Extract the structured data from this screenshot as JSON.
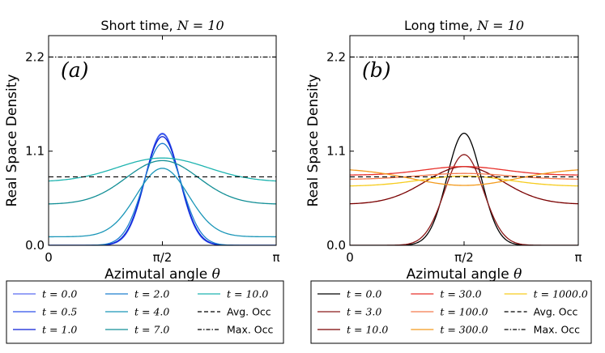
{
  "colors": {
    "avg_occ": "#000000",
    "max_occ": "#000000"
  },
  "chart_data": [
    {
      "type": "line",
      "panel_label": "(a)",
      "title": "Short time, N = 10",
      "title_parts": {
        "prefix": "Short time, ",
        "var": "N",
        "eq": " = 10"
      },
      "xlabel": "Azimutal angle θ",
      "xlabel_prefix": "Azimutal angle ",
      "xlabel_var": "θ",
      "ylabel": "Real Space Density",
      "xlim": [
        0,
        3.14159
      ],
      "ylim": [
        0,
        2.45
      ],
      "x_ticks": [
        {
          "value": 0,
          "label": "0"
        },
        {
          "value": 1.5708,
          "label": "π/2"
        },
        {
          "value": 3.14159,
          "label": "π"
        }
      ],
      "y_ticks": [
        {
          "value": 0,
          "label": "0.0"
        },
        {
          "value": 1.1,
          "label": "1.1"
        },
        {
          "value": 2.2,
          "label": "2.2"
        }
      ],
      "profile": "gaussian",
      "series": [
        {
          "name": "t = 0.0",
          "color": "#5a6cf2",
          "amplitude": 1.31,
          "sigma": 0.235,
          "offset": 0.0
        },
        {
          "name": "t = 0.5",
          "color": "#2f52ea",
          "amplitude": 1.3,
          "sigma": 0.237,
          "offset": 0.0
        },
        {
          "name": "t = 1.0",
          "color": "#0a1fd6",
          "amplitude": 1.27,
          "sigma": 0.243,
          "offset": 0.0
        },
        {
          "name": "t = 2.0",
          "color": "#1d7fcf",
          "amplitude": 1.19,
          "sigma": 0.262,
          "offset": 0.0
        },
        {
          "name": "t = 4.0",
          "color": "#1a96b8",
          "amplitude": 0.8,
          "sigma": 0.36,
          "offset": 0.1
        },
        {
          "name": "t = 7.0",
          "color": "#138f96",
          "amplitude": 0.51,
          "sigma": 0.5,
          "offset": 0.48
        },
        {
          "name": "t = 10.0",
          "color": "#1fb4b0",
          "amplitude": 0.28,
          "sigma": 0.62,
          "offset": 0.74
        }
      ],
      "avg_occ": 0.8,
      "max_occ": 2.2,
      "legend": {
        "entries": [
          {
            "label": "t = 0.0",
            "var": "t",
            "eq": " = 0.0",
            "style": "line",
            "color": "#5a6cf2"
          },
          {
            "label": "t = 0.5",
            "var": "t",
            "eq": " = 0.5",
            "style": "line",
            "color": "#2f52ea"
          },
          {
            "label": "t = 1.0",
            "var": "t",
            "eq": " = 1.0",
            "style": "line",
            "color": "#0a1fd6"
          },
          {
            "label": "t = 2.0",
            "var": "t",
            "eq": " = 2.0",
            "style": "line",
            "color": "#1d7fcf"
          },
          {
            "label": "t = 4.0",
            "var": "t",
            "eq": " = 4.0",
            "style": "line",
            "color": "#1a96b8"
          },
          {
            "label": "t = 7.0",
            "var": "t",
            "eq": " = 7.0",
            "style": "line",
            "color": "#138f96"
          },
          {
            "label": "t = 10.0",
            "var": "t",
            "eq": " = 10.0",
            "style": "line",
            "color": "#1fb4b0"
          },
          {
            "label": "Avg. Occ",
            "var": "",
            "eq": "Avg. Occ",
            "style": "dashed",
            "color": "#000000"
          },
          {
            "label": "Max. Occ",
            "var": "",
            "eq": "Max. Occ",
            "style": "dashdot",
            "color": "#000000"
          }
        ]
      }
    },
    {
      "type": "line",
      "panel_label": "(b)",
      "title": "Long time, N = 10",
      "title_parts": {
        "prefix": "Long time, ",
        "var": "N",
        "eq": " = 10"
      },
      "xlabel": "Azimutal angle θ",
      "xlabel_prefix": "Azimutal angle ",
      "xlabel_var": "θ",
      "ylabel": "Real Space Density",
      "xlim": [
        0,
        3.14159
      ],
      "ylim": [
        0,
        2.45
      ],
      "x_ticks": [
        {
          "value": 0,
          "label": "0"
        },
        {
          "value": 1.5708,
          "label": "π/2"
        },
        {
          "value": 3.14159,
          "label": "π"
        }
      ],
      "y_ticks": [
        {
          "value": 0,
          "label": "0.0"
        },
        {
          "value": 1.1,
          "label": "1.1"
        },
        {
          "value": 2.2,
          "label": "2.2"
        }
      ],
      "profile": "gaussian",
      "series": [
        {
          "name": "t = 0.0",
          "color": "#000000",
          "amplitude": 1.31,
          "sigma": 0.235,
          "offset": 0.0
        },
        {
          "name": "t = 3.0",
          "color": "#8b1a1a",
          "amplitude": 1.06,
          "sigma": 0.265,
          "offset": 0.0
        },
        {
          "name": "t = 10.0",
          "color": "#7a0000",
          "amplitude": 0.44,
          "sigma": 0.53,
          "offset": 0.48
        },
        {
          "name": "t = 30.0",
          "color": "#e8302a",
          "amplitude": 0.1,
          "sigma": 0.55,
          "offset": 0.82
        },
        {
          "name": "t = 100.0",
          "color": "#f47a4e",
          "amplitude": 0.07,
          "sigma": 0.62,
          "offset": 0.77
        },
        {
          "name": "t = 300.0",
          "color": "#f39a1c",
          "amplitude": -0.2,
          "sigma": 0.72,
          "offset": 0.9
        },
        {
          "name": "t = 1000.0",
          "color": "#f6cc1e",
          "amplitude": 0.12,
          "sigma": 0.6,
          "offset": 0.69
        }
      ],
      "avg_occ": 0.8,
      "max_occ": 2.2,
      "legend": {
        "entries": [
          {
            "label": "t = 0.0",
            "var": "t",
            "eq": " = 0.0",
            "style": "line",
            "color": "#000000"
          },
          {
            "label": "t = 3.0",
            "var": "t",
            "eq": " = 3.0",
            "style": "line",
            "color": "#8b1a1a"
          },
          {
            "label": "t = 10.0",
            "var": "t",
            "eq": " = 10.0",
            "style": "line",
            "color": "#7a0000"
          },
          {
            "label": "t = 30.0",
            "var": "t",
            "eq": " = 30.0",
            "style": "line",
            "color": "#e8302a"
          },
          {
            "label": "t = 100.0",
            "var": "t",
            "eq": " = 100.0",
            "style": "line",
            "color": "#f47a4e"
          },
          {
            "label": "t = 300.0",
            "var": "t",
            "eq": " = 300.0",
            "style": "line",
            "color": "#f39a1c"
          },
          {
            "label": "t = 1000.0",
            "var": "t",
            "eq": " = 1000.0",
            "style": "line",
            "color": "#f6cc1e"
          },
          {
            "label": "Avg. Occ",
            "var": "",
            "eq": "Avg. Occ",
            "style": "dashed",
            "color": "#000000"
          },
          {
            "label": "Max. Occ",
            "var": "",
            "eq": "Max. Occ",
            "style": "dashdot",
            "color": "#000000"
          }
        ]
      }
    }
  ]
}
